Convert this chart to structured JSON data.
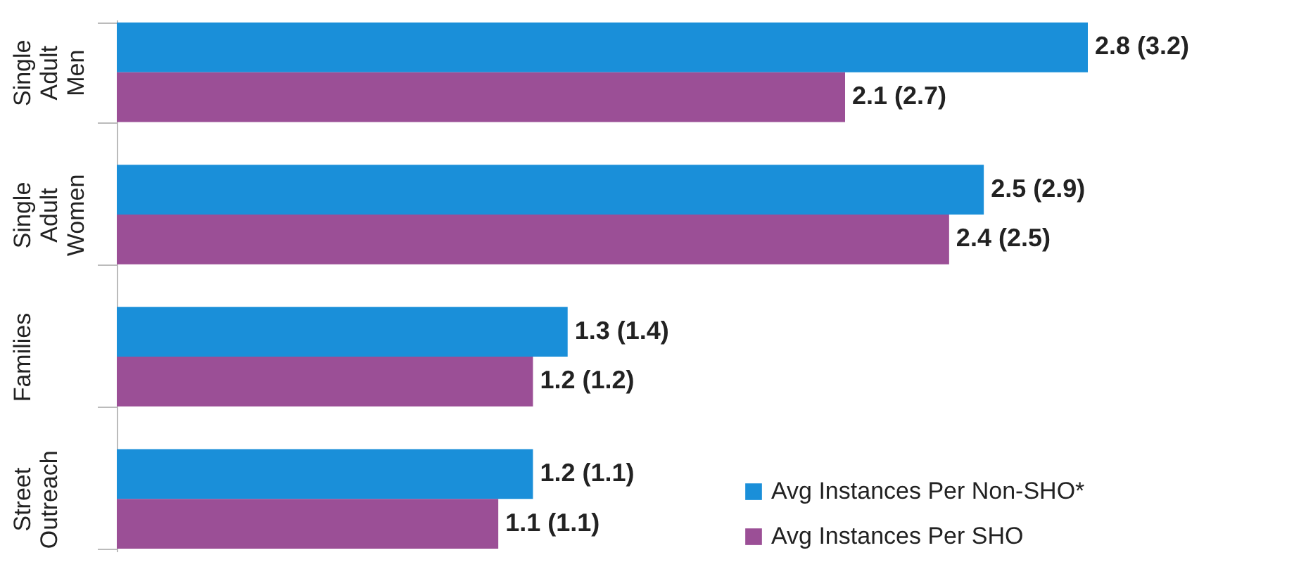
{
  "chart_data": {
    "type": "bar",
    "orientation": "horizontal",
    "categories": [
      "Single Adult Men",
      "Single Adult Women",
      "Families",
      "Street Outreach"
    ],
    "series": [
      {
        "name": "Avg Instances Per Non-SHO*",
        "color": "#1a8fd9",
        "values": [
          2.8,
          2.5,
          1.3,
          1.2
        ],
        "value_labels": [
          "2.8 (3.2)",
          "2.5 (2.9)",
          "1.3 (1.4)",
          "1.2 (1.1)"
        ]
      },
      {
        "name": "Avg Instances Per SHO",
        "color": "#9b4f96",
        "values": [
          2.1,
          2.4,
          1.2,
          1.1
        ],
        "value_labels": [
          "2.1 (2.7)",
          "2.4 (2.5)",
          "1.2 (1.2)",
          "1.1 (1.1)"
        ]
      }
    ],
    "legend": "bottom right",
    "tick_labels": "y"
  }
}
